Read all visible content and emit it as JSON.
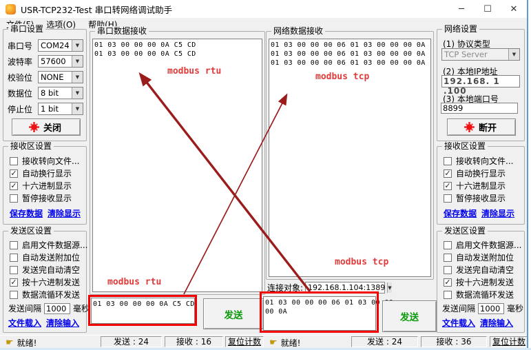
{
  "window": {
    "title": "USR-TCP232-Test 串口转网络调试助手",
    "minimize": "─",
    "maximize": "☐",
    "close": "✕"
  },
  "menu": {
    "items": [
      "文件(F)",
      "选项(O)",
      "帮助(H)"
    ]
  },
  "icons": {
    "ready": "☛",
    "dropdown": "▼",
    "check": "✓"
  },
  "colors": {
    "send_button_text": "#0a9a0a",
    "link": "#0000ee",
    "annotation": "#e23b3b",
    "arrow": "#9b1c1c",
    "highlight": "#f40000",
    "led": "#ee1111"
  },
  "serial_settings": {
    "title": "串口设置",
    "fields": [
      {
        "label": "串口号",
        "value": "COM24"
      },
      {
        "label": "波特率",
        "value": "57600"
      },
      {
        "label": "校验位",
        "value": "NONE"
      },
      {
        "label": "数据位",
        "value": "8 bit"
      },
      {
        "label": "停止位",
        "value": "1 bit"
      }
    ],
    "button": "关闭"
  },
  "network_settings": {
    "title": "网络设置",
    "protocol_label": "(1) 协议类型",
    "protocol_value": "TCP Server",
    "ip_label": "(2) 本地IP地址",
    "ip_value": "192.168. 1 .100",
    "port_label": "(3) 本地端口号",
    "port_value": "8899",
    "button": "断开"
  },
  "recv_settings": {
    "title": "接收区设置",
    "options": [
      {
        "label": "接收转向文件...",
        "checked": false
      },
      {
        "label": "自动换行显示",
        "checked": true
      },
      {
        "label": "十六进制显示",
        "checked": true
      },
      {
        "label": "暂停接收显示",
        "checked": false
      }
    ],
    "links": [
      "保存数据",
      "清除显示"
    ]
  },
  "send_settings": {
    "title": "发送区设置",
    "options": [
      {
        "label": "启用文件数据源...",
        "checked": false
      },
      {
        "label": "自动发送附加位",
        "checked": false
      },
      {
        "label": "发送完自动清空",
        "checked": false
      },
      {
        "label": "按十六进制发送",
        "checked": true
      },
      {
        "label": "数据流循环发送",
        "checked": false
      }
    ],
    "interval_label": "发送间隔",
    "interval_value": "1000",
    "interval_unit": "毫秒",
    "links": [
      "文件载入",
      "清除输入"
    ]
  },
  "serial_panel": {
    "title": "串口数据接收",
    "lines": [
      "01 03 00 00 00 0A C5 CD",
      "01 03 00 00 00 0A C5 CD"
    ],
    "send_lines": [
      "01 03 00 00 00 0A C5 CD"
    ],
    "send_button": "发送"
  },
  "network_panel": {
    "title": "网络数据接收",
    "lines": [
      "01 03 00 00 00 06 01 03 00 00 00 0A",
      "01 03 00 00 00 06 01 03 00 00 00 0A",
      "01 03 00 00 00 06 01 03 00 00 00 0A"
    ],
    "peer_label": "连接对象:",
    "peer_value": "192.168.1.104:1389",
    "send_lines": [
      "01 03 00 00 00 06 01 03 00 00",
      "00 0A"
    ],
    "send_button": "发送"
  },
  "annotations": {
    "rtu_top": "modbus rtu",
    "tcp_top": "modbus tcp",
    "tcp_bottom": "modbus tcp",
    "rtu_bottom": "modbus rtu"
  },
  "statusbar_serial": {
    "ready": "就绪!",
    "sent": "发送 : 24",
    "received": "接收 : 16",
    "reset": "复位计数"
  },
  "statusbar_network": {
    "ready": "就绪!",
    "sent": "发送 : 24",
    "received": "接收 : 36",
    "reset": "复位计数"
  }
}
